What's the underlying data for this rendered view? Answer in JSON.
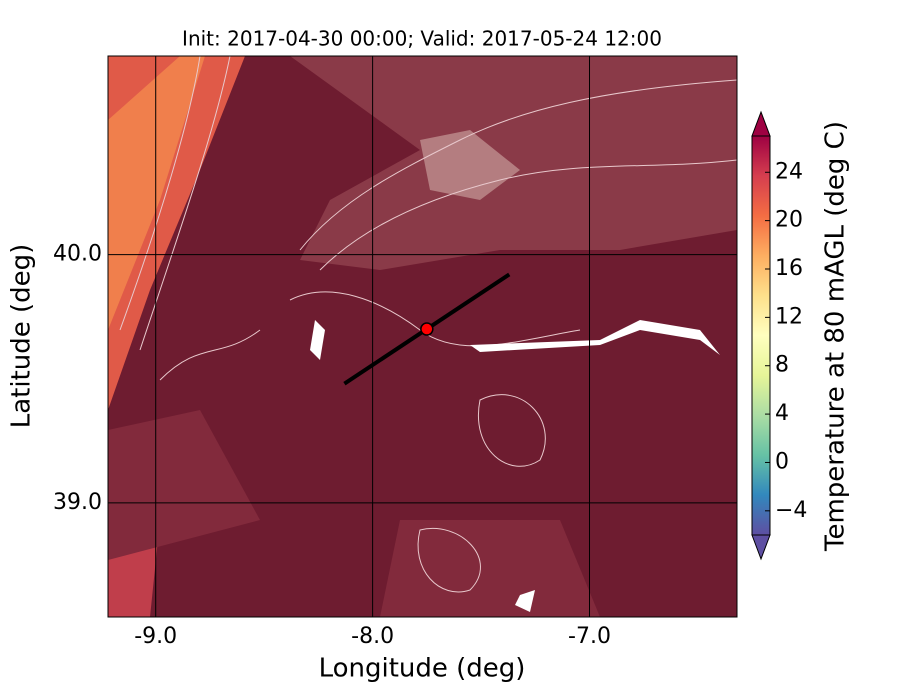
{
  "chart_data": {
    "type": "map",
    "title": "Init: 2017-04-30 00:00; Valid: 2017-05-24 12:00",
    "xlabel": "Longitude (deg)",
    "ylabel": "Latitude (deg)",
    "xlim": [
      -9.22,
      -6.32
    ],
    "ylim": [
      38.54,
      40.8
    ],
    "xticks": [
      {
        "value": -9,
        "label": "-9.0"
      },
      {
        "value": -8,
        "label": "-8.0"
      },
      {
        "value": -7,
        "label": "-7.0"
      }
    ],
    "yticks": [
      {
        "value": 39,
        "label": "39.0"
      },
      {
        "value": 40,
        "label": "40.0"
      }
    ],
    "colorbar": {
      "label": "Temperature at 80 mAGL (deg C)",
      "lim": [
        -6,
        27
      ],
      "ticks": [
        {
          "value": -4,
          "label": "−4"
        },
        0,
        4,
        8,
        12,
        16,
        20,
        24
      ]
    },
    "transect": {
      "lon": [
        -8.13,
        -7.37
      ],
      "lat": [
        39.48,
        39.92
      ],
      "color": "#000000"
    },
    "site": {
      "lon": -7.75,
      "lat": 39.7,
      "color": "#ff0000"
    }
  }
}
